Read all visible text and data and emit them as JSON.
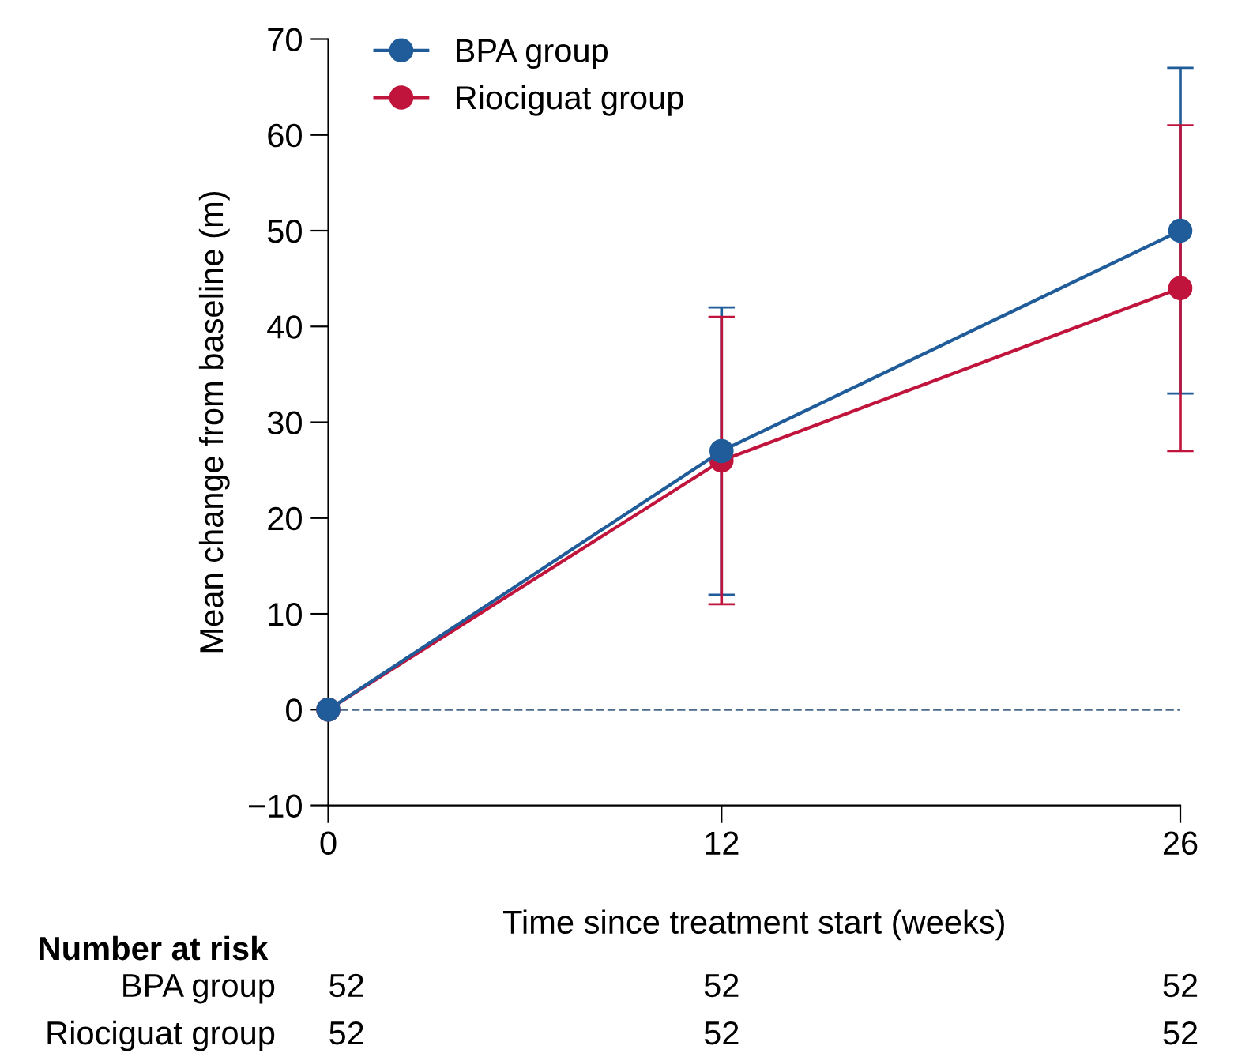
{
  "chart_data": {
    "type": "line",
    "xlabel": "Time since treatment start (weeks)",
    "ylabel": "Mean change from baseline (m)",
    "x": [
      0,
      12,
      26
    ],
    "series": [
      {
        "name": "BPA group",
        "color": "#1f5c99",
        "values": [
          0,
          27,
          50
        ],
        "errors": [
          null,
          [
            12,
            42
          ],
          [
            33,
            67
          ]
        ]
      },
      {
        "name": "Riociguat group",
        "color": "#c0143c",
        "values": [
          0,
          26,
          44
        ],
        "errors": [
          null,
          [
            11,
            41
          ],
          [
            27,
            61
          ]
        ]
      }
    ],
    "xlim": [
      0,
      26
    ],
    "xticks": [
      0,
      12,
      26
    ],
    "ylim": [
      -10,
      70
    ],
    "yticks": [
      {
        "value": -10,
        "label": "−10"
      },
      0,
      10,
      20,
      30,
      40,
      50,
      60,
      70
    ],
    "ref_lines": [
      {
        "axis": "y",
        "value": 0,
        "color": "#4a6a8a",
        "line_style": "dashed"
      }
    ],
    "marker": "circle",
    "grid": false,
    "legend": "top left",
    "annotations": [
      "Number at risk",
      "BPA group",
      "52",
      "52",
      "52",
      "Riociguat group",
      "52",
      "52",
      "52"
    ]
  }
}
